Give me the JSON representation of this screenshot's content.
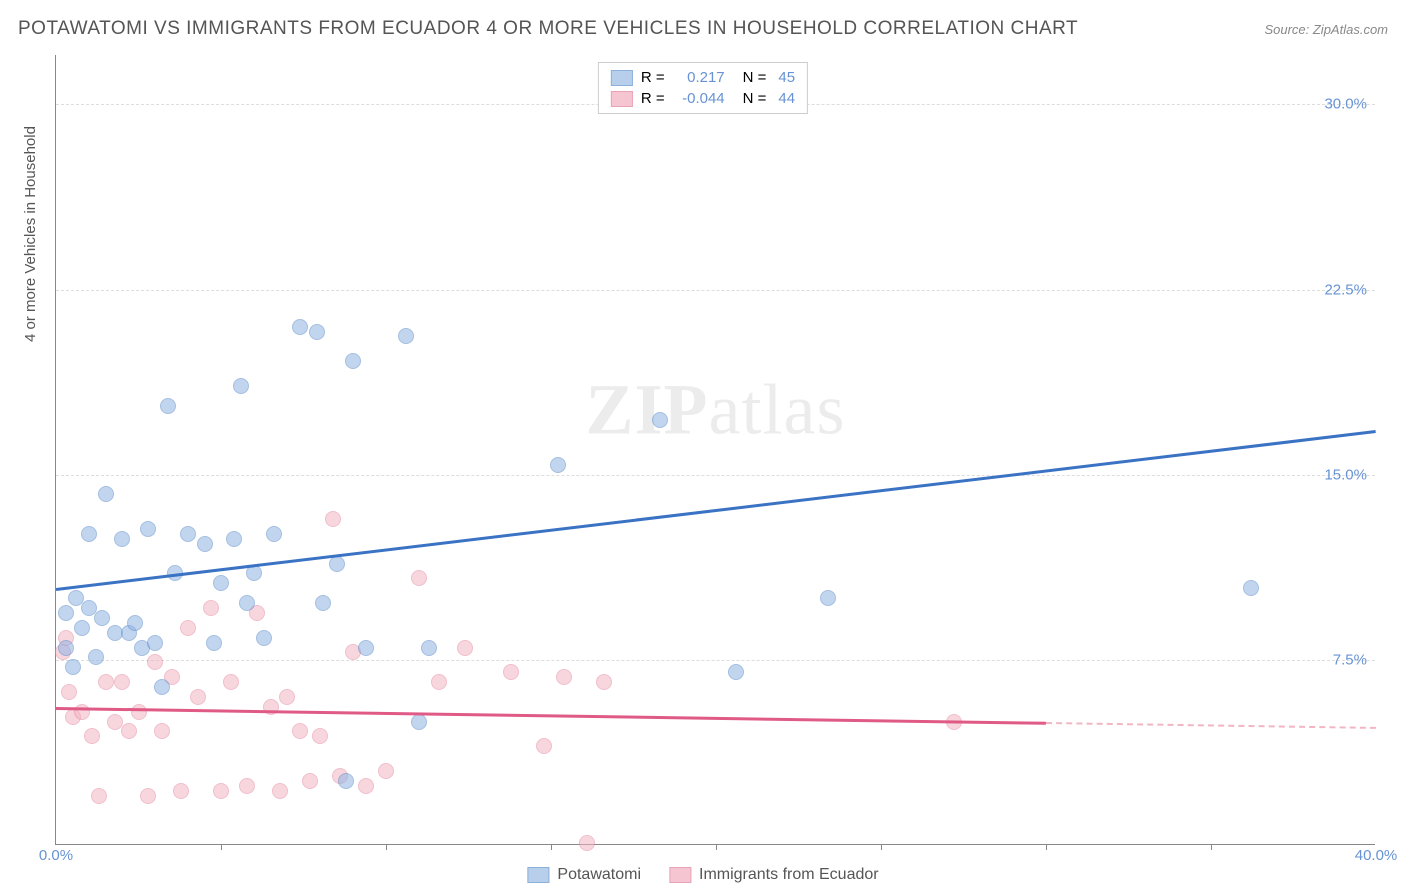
{
  "header": {
    "title": "POTAWATOMI VS IMMIGRANTS FROM ECUADOR 4 OR MORE VEHICLES IN HOUSEHOLD CORRELATION CHART",
    "source": "Source: ZipAtlas.com"
  },
  "chart": {
    "type": "scatter",
    "ylabel": "4 or more Vehicles in Household",
    "watermark": "ZIPatlas",
    "background_color": "#ffffff",
    "grid_color": "#dddddd",
    "axis_color": "#888888",
    "xlim": [
      0,
      40
    ],
    "ylim": [
      0,
      32
    ],
    "yticks": [
      {
        "v": 7.5,
        "label": "7.5%"
      },
      {
        "v": 15.0,
        "label": "15.0%"
      },
      {
        "v": 22.5,
        "label": "22.5%"
      },
      {
        "v": 30.0,
        "label": "30.0%"
      }
    ],
    "xticks_corners": [
      {
        "v": 0,
        "label": "0.0%"
      },
      {
        "v": 40,
        "label": "40.0%"
      }
    ],
    "xticks_marks": [
      5,
      10,
      15,
      20,
      25,
      30,
      35
    ],
    "legend_top": [
      {
        "swatch": "blue",
        "r_label": "R =",
        "r": "0.217",
        "n_label": "N =",
        "n": "45"
      },
      {
        "swatch": "pink",
        "r_label": "R =",
        "r": "-0.044",
        "n_label": "N =",
        "n": "44"
      }
    ],
    "legend_bottom": [
      {
        "swatch": "blue",
        "label": "Potawatomi"
      },
      {
        "swatch": "pink",
        "label": "Immigrants from Ecuador"
      }
    ],
    "series": {
      "blue": {
        "color": "#8fb4e3",
        "border": "#5a8bc9",
        "trend_color": "#3a72c4",
        "trend": {
          "x1": 0,
          "y1": 10.4,
          "x2": 40,
          "y2": 16.8
        },
        "points": [
          [
            0.3,
            8.0
          ],
          [
            0.3,
            9.4
          ],
          [
            0.5,
            7.2
          ],
          [
            0.6,
            10.0
          ],
          [
            0.8,
            8.8
          ],
          [
            1.0,
            9.6
          ],
          [
            1.0,
            12.6
          ],
          [
            1.2,
            7.6
          ],
          [
            1.4,
            9.2
          ],
          [
            1.5,
            14.2
          ],
          [
            1.8,
            8.6
          ],
          [
            2.0,
            12.4
          ],
          [
            2.2,
            8.6
          ],
          [
            2.4,
            9.0
          ],
          [
            2.6,
            8.0
          ],
          [
            2.8,
            12.8
          ],
          [
            3.0,
            8.2
          ],
          [
            3.2,
            6.4
          ],
          [
            3.4,
            17.8
          ],
          [
            3.6,
            11.0
          ],
          [
            4.0,
            12.6
          ],
          [
            4.5,
            12.2
          ],
          [
            4.8,
            8.2
          ],
          [
            5.0,
            10.6
          ],
          [
            5.4,
            12.4
          ],
          [
            5.6,
            18.6
          ],
          [
            5.8,
            9.8
          ],
          [
            6.0,
            11.0
          ],
          [
            6.3,
            8.4
          ],
          [
            6.6,
            12.6
          ],
          [
            7.4,
            21.0
          ],
          [
            7.9,
            20.8
          ],
          [
            8.1,
            9.8
          ],
          [
            8.5,
            11.4
          ],
          [
            8.8,
            2.6
          ],
          [
            9.0,
            19.6
          ],
          [
            9.4,
            8.0
          ],
          [
            10.6,
            20.6
          ],
          [
            11.0,
            5.0
          ],
          [
            11.3,
            8.0
          ],
          [
            15.2,
            15.4
          ],
          [
            18.3,
            17.2
          ],
          [
            20.6,
            7.0
          ],
          [
            23.4,
            10.0
          ],
          [
            36.2,
            10.4
          ]
        ]
      },
      "pink": {
        "color": "#f2b5c4",
        "border": "#e68aa3",
        "trend_color": "#e05a86",
        "trend": {
          "x1": 0,
          "y1": 5.6,
          "x2": 30,
          "y2": 5.0,
          "dashed_extend_to": 40
        },
        "points": [
          [
            0.2,
            7.8
          ],
          [
            0.3,
            8.4
          ],
          [
            0.4,
            6.2
          ],
          [
            0.5,
            5.2
          ],
          [
            0.8,
            5.4
          ],
          [
            1.1,
            4.4
          ],
          [
            1.3,
            2.0
          ],
          [
            1.5,
            6.6
          ],
          [
            1.8,
            5.0
          ],
          [
            2.0,
            6.6
          ],
          [
            2.2,
            4.6
          ],
          [
            2.5,
            5.4
          ],
          [
            2.8,
            2.0
          ],
          [
            3.0,
            7.4
          ],
          [
            3.2,
            4.6
          ],
          [
            3.5,
            6.8
          ],
          [
            3.8,
            2.2
          ],
          [
            4.0,
            8.8
          ],
          [
            4.3,
            6.0
          ],
          [
            4.7,
            9.6
          ],
          [
            5.0,
            2.2
          ],
          [
            5.3,
            6.6
          ],
          [
            5.8,
            2.4
          ],
          [
            6.1,
            9.4
          ],
          [
            6.5,
            5.6
          ],
          [
            6.8,
            2.2
          ],
          [
            7.0,
            6.0
          ],
          [
            7.4,
            4.6
          ],
          [
            7.7,
            2.6
          ],
          [
            8.0,
            4.4
          ],
          [
            8.4,
            13.2
          ],
          [
            8.6,
            2.8
          ],
          [
            9.0,
            7.8
          ],
          [
            9.4,
            2.4
          ],
          [
            10.0,
            3.0
          ],
          [
            11.0,
            10.8
          ],
          [
            11.6,
            6.6
          ],
          [
            12.4,
            8.0
          ],
          [
            13.8,
            7.0
          ],
          [
            14.8,
            4.0
          ],
          [
            15.4,
            6.8
          ],
          [
            16.1,
            0.1
          ],
          [
            16.6,
            6.6
          ],
          [
            27.2,
            5.0
          ]
        ]
      }
    }
  }
}
